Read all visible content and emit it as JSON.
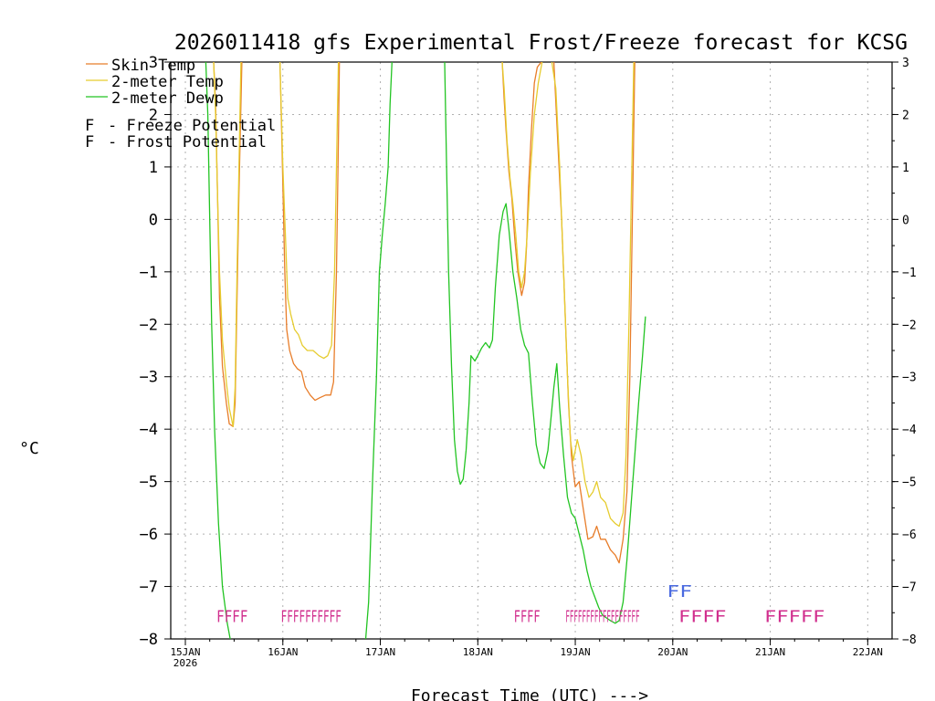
{
  "chart_data": {
    "type": "line",
    "title": "2026011418 gfs Experimental Frost/Freeze forecast for KCSG",
    "ylabel": "°C",
    "xlabel": "Forecast Time (UTC) --->",
    "ylim": [
      -8,
      3
    ],
    "xlim": [
      -0.15,
      7.25
    ],
    "yticks": [
      "-8",
      "-7",
      "-6",
      "-5",
      "-4",
      "-3",
      "-2",
      "-1",
      "0",
      "1",
      "2",
      "3"
    ],
    "xticks": [
      {
        "label": "15JAN",
        "sub": "2026",
        "day": 0
      },
      {
        "label": "16JAN",
        "sub": "",
        "day": 1
      },
      {
        "label": "17JAN",
        "sub": "",
        "day": 2
      },
      {
        "label": "18JAN",
        "sub": "",
        "day": 3
      },
      {
        "label": "19JAN",
        "sub": "",
        "day": 4
      },
      {
        "label": "20JAN",
        "sub": "",
        "day": 5
      },
      {
        "label": "21JAN",
        "sub": "",
        "day": 6
      },
      {
        "label": "22JAN",
        "sub": "",
        "day": 7
      }
    ],
    "grid": true,
    "legend": {
      "series": [
        {
          "name": "Skin Temp",
          "color": "#e87d2a"
        },
        {
          "name": "2-meter Temp",
          "color": "#e6cc2e"
        },
        {
          "name": "2-meter Dewp",
          "color": "#22c422"
        }
      ],
      "markers": [
        {
          "symbol": "F",
          "text": "- Freeze Potential",
          "color": "#d12f8e"
        },
        {
          "symbol": "F",
          "text": "- Frost Potential",
          "color": "#4a6ae0"
        }
      ]
    },
    "series": [
      {
        "name": "Skin Temp",
        "color": "#e87d2a",
        "segments": [
          [
            [
              0.29,
              3.0
            ],
            [
              0.31,
              2.2
            ],
            [
              0.33,
              0.5
            ],
            [
              0.35,
              -1.5
            ],
            [
              0.38,
              -2.8
            ],
            [
              0.42,
              -3.5
            ],
            [
              0.45,
              -3.9
            ],
            [
              0.49,
              -3.95
            ],
            [
              0.51,
              -3.5
            ],
            [
              0.53,
              -1.5
            ],
            [
              0.55,
              0.5
            ],
            [
              0.58,
              3.0
            ]
          ],
          [
            [
              0.97,
              3.0
            ],
            [
              0.99,
              1.5
            ],
            [
              1.02,
              -1.0
            ],
            [
              1.04,
              -2.1
            ],
            [
              1.07,
              -2.5
            ],
            [
              1.11,
              -2.75
            ],
            [
              1.15,
              -2.85
            ],
            [
              1.19,
              -2.9
            ],
            [
              1.23,
              -3.2
            ],
            [
              1.28,
              -3.35
            ],
            [
              1.33,
              -3.45
            ],
            [
              1.38,
              -3.4
            ],
            [
              1.44,
              -3.35
            ],
            [
              1.49,
              -3.35
            ],
            [
              1.52,
              -3.1
            ],
            [
              1.55,
              -1.0
            ],
            [
              1.57,
              1.5
            ],
            [
              1.58,
              3.0
            ]
          ],
          [
            [
              3.25,
              3.0
            ],
            [
              3.27,
              2.3
            ],
            [
              3.29,
              1.7
            ],
            [
              3.32,
              0.9
            ],
            [
              3.35,
              0.4
            ],
            [
              3.38,
              -0.4
            ],
            [
              3.41,
              -1.0
            ],
            [
              3.45,
              -1.45
            ],
            [
              3.48,
              -1.2
            ],
            [
              3.5,
              -0.5
            ],
            [
              3.52,
              0.6
            ],
            [
              3.55,
              1.7
            ],
            [
              3.58,
              2.6
            ],
            [
              3.61,
              2.9
            ],
            [
              3.65,
              3.0
            ]
          ],
          [
            [
              3.78,
              3.0
            ],
            [
              3.82,
              1.5
            ],
            [
              3.86,
              0.0
            ],
            [
              3.9,
              -2.0
            ],
            [
              3.93,
              -3.5
            ],
            [
              3.96,
              -4.5
            ],
            [
              4.0,
              -5.1
            ],
            [
              4.04,
              -5.0
            ],
            [
              4.08,
              -5.5
            ],
            [
              4.13,
              -6.1
            ],
            [
              4.18,
              -6.05
            ],
            [
              4.22,
              -5.85
            ],
            [
              4.26,
              -6.1
            ],
            [
              4.31,
              -6.1
            ],
            [
              4.36,
              -6.3
            ],
            [
              4.41,
              -6.4
            ],
            [
              4.45,
              -6.55
            ],
            [
              4.49,
              -6.1
            ],
            [
              4.53,
              -5.2
            ],
            [
              4.56,
              -3.0
            ],
            [
              4.59,
              0.5
            ],
            [
              4.61,
              3.0
            ]
          ]
        ]
      },
      {
        "name": "2-meter Temp",
        "color": "#e6cc2e",
        "segments": [
          [
            [
              0.29,
              3.0
            ],
            [
              0.31,
              2.0
            ],
            [
              0.33,
              0.5
            ],
            [
              0.35,
              -1.0
            ],
            [
              0.38,
              -2.3
            ],
            [
              0.42,
              -3.1
            ],
            [
              0.45,
              -3.6
            ],
            [
              0.49,
              -3.95
            ],
            [
              0.51,
              -3.2
            ],
            [
              0.53,
              -1.0
            ],
            [
              0.55,
              1.0
            ],
            [
              0.57,
              3.0
            ]
          ],
          [
            [
              0.97,
              3.0
            ],
            [
              1.0,
              1.0
            ],
            [
              1.03,
              -0.5
            ],
            [
              1.05,
              -1.5
            ],
            [
              1.08,
              -1.8
            ],
            [
              1.12,
              -2.1
            ],
            [
              1.16,
              -2.2
            ],
            [
              1.2,
              -2.4
            ],
            [
              1.25,
              -2.5
            ],
            [
              1.31,
              -2.5
            ],
            [
              1.37,
              -2.6
            ],
            [
              1.42,
              -2.65
            ],
            [
              1.46,
              -2.6
            ],
            [
              1.5,
              -2.4
            ],
            [
              1.53,
              -1.0
            ],
            [
              1.55,
              1.0
            ],
            [
              1.57,
              3.0
            ]
          ],
          [
            [
              3.25,
              3.0
            ],
            [
              3.27,
              2.5
            ],
            [
              3.3,
              1.5
            ],
            [
              3.33,
              0.8
            ],
            [
              3.36,
              0.3
            ],
            [
              3.39,
              -0.3
            ],
            [
              3.42,
              -1.0
            ],
            [
              3.45,
              -1.3
            ],
            [
              3.48,
              -1.0
            ],
            [
              3.51,
              -0.2
            ],
            [
              3.54,
              0.9
            ],
            [
              3.58,
              2.0
            ],
            [
              3.62,
              2.6
            ],
            [
              3.66,
              3.0
            ]
          ],
          [
            [
              3.76,
              3.0
            ],
            [
              3.8,
              2.5
            ],
            [
              3.84,
              1.0
            ],
            [
              3.88,
              -1.0
            ],
            [
              3.92,
              -3.0
            ],
            [
              3.95,
              -4.2
            ],
            [
              3.98,
              -4.6
            ],
            [
              4.02,
              -4.2
            ],
            [
              4.06,
              -4.5
            ],
            [
              4.1,
              -5.0
            ],
            [
              4.14,
              -5.3
            ],
            [
              4.18,
              -5.2
            ],
            [
              4.22,
              -5.0
            ],
            [
              4.26,
              -5.3
            ],
            [
              4.31,
              -5.4
            ],
            [
              4.36,
              -5.7
            ],
            [
              4.41,
              -5.8
            ],
            [
              4.45,
              -5.85
            ],
            [
              4.49,
              -5.6
            ],
            [
              4.52,
              -4.5
            ],
            [
              4.55,
              -2.0
            ],
            [
              4.58,
              1.0
            ],
            [
              4.6,
              3.0
            ]
          ]
        ]
      },
      {
        "name": "2-meter Dewp",
        "color": "#22c422",
        "segments": [
          [
            [
              0.21,
              3.0
            ],
            [
              0.23,
              2.0
            ],
            [
              0.25,
              0.0
            ],
            [
              0.27,
              -2.0
            ],
            [
              0.3,
              -4.0
            ],
            [
              0.34,
              -5.8
            ],
            [
              0.38,
              -7.0
            ],
            [
              0.43,
              -7.7
            ],
            [
              0.46,
              -8.0
            ]
          ],
          [
            [
              1.85,
              -8.0
            ],
            [
              1.88,
              -7.3
            ],
            [
              1.92,
              -5.0
            ],
            [
              1.96,
              -3.0
            ],
            [
              1.99,
              -1.0
            ],
            [
              2.02,
              -0.3
            ],
            [
              2.05,
              0.3
            ],
            [
              2.08,
              1.0
            ],
            [
              2.1,
              2.2
            ],
            [
              2.12,
              3.0
            ]
          ],
          [
            [
              2.66,
              3.0
            ],
            [
              2.68,
              1.0
            ],
            [
              2.7,
              -1.0
            ],
            [
              2.73,
              -2.8
            ],
            [
              2.76,
              -4.2
            ],
            [
              2.79,
              -4.8
            ],
            [
              2.82,
              -5.05
            ],
            [
              2.85,
              -4.95
            ],
            [
              2.88,
              -4.4
            ],
            [
              2.91,
              -3.5
            ],
            [
              2.93,
              -2.6
            ],
            [
              2.97,
              -2.7
            ],
            [
              3.0,
              -2.6
            ],
            [
              3.04,
              -2.45
            ],
            [
              3.08,
              -2.35
            ],
            [
              3.12,
              -2.45
            ],
            [
              3.15,
              -2.3
            ],
            [
              3.18,
              -1.3
            ],
            [
              3.22,
              -0.3
            ],
            [
              3.26,
              0.15
            ],
            [
              3.29,
              0.3
            ],
            [
              3.32,
              -0.2
            ],
            [
              3.36,
              -1.0
            ],
            [
              3.4,
              -1.5
            ],
            [
              3.44,
              -2.1
            ],
            [
              3.48,
              -2.4
            ],
            [
              3.52,
              -2.55
            ],
            [
              3.56,
              -3.5
            ],
            [
              3.6,
              -4.3
            ],
            [
              3.64,
              -4.65
            ],
            [
              3.68,
              -4.75
            ],
            [
              3.72,
              -4.4
            ],
            [
              3.75,
              -3.8
            ],
            [
              3.78,
              -3.2
            ],
            [
              3.81,
              -2.75
            ],
            [
              3.84,
              -3.6
            ],
            [
              3.88,
              -4.5
            ],
            [
              3.92,
              -5.3
            ],
            [
              3.96,
              -5.6
            ],
            [
              4.0,
              -5.7
            ],
            [
              4.04,
              -6.0
            ],
            [
              4.08,
              -6.3
            ],
            [
              4.12,
              -6.7
            ],
            [
              4.16,
              -7.0
            ],
            [
              4.2,
              -7.2
            ],
            [
              4.24,
              -7.4
            ],
            [
              4.28,
              -7.55
            ],
            [
              4.32,
              -7.6
            ],
            [
              4.36,
              -7.65
            ],
            [
              4.41,
              -7.7
            ],
            [
              4.45,
              -7.65
            ],
            [
              4.49,
              -7.3
            ],
            [
              4.53,
              -6.5
            ],
            [
              4.57,
              -5.5
            ],
            [
              4.61,
              -4.5
            ],
            [
              4.65,
              -3.5
            ],
            [
              4.69,
              -2.6
            ],
            [
              4.72,
              -1.85
            ]
          ]
        ]
      }
    ],
    "freeze_markers": [
      {
        "text": "FFFF",
        "start": 0.32,
        "end": 0.64,
        "row": 0
      },
      {
        "text": "FFFFFFFFFF",
        "start": 0.98,
        "end": 1.6,
        "row": 0
      },
      {
        "text": "FFFF",
        "start": 3.37,
        "end": 3.64,
        "row": 0
      },
      {
        "text": "FFFFFFFFFFFFFFFFFF",
        "start": 3.9,
        "end": 4.66,
        "row": 0
      },
      {
        "text": "FFFF",
        "start": 5.06,
        "end": 5.55,
        "row": 0
      },
      {
        "text": "FFFFF",
        "start": 5.94,
        "end": 6.56,
        "row": 0
      }
    ],
    "frost_markers": [
      {
        "text": "FF",
        "start": 4.94,
        "end": 5.2,
        "row": 1
      }
    ]
  }
}
